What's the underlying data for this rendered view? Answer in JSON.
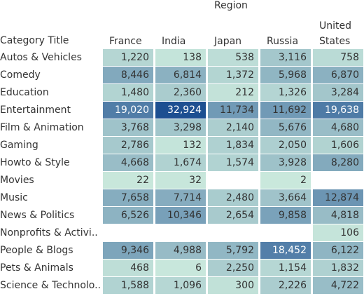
{
  "chart_data": {
    "type": "heatmap",
    "header_title": "Region",
    "row_header": "Category Title",
    "columns": [
      "France",
      "India",
      "Japan",
      "Russia",
      "United States"
    ],
    "rows": [
      {
        "label": "Autos & Vehicles",
        "values": [
          1220,
          138,
          538,
          3116,
          758
        ]
      },
      {
        "label": "Comedy",
        "values": [
          8446,
          6814,
          1372,
          5968,
          6870
        ]
      },
      {
        "label": "Education",
        "values": [
          1480,
          2360,
          212,
          1326,
          3284
        ]
      },
      {
        "label": "Entertainment",
        "values": [
          19020,
          32924,
          11734,
          11692,
          19638
        ]
      },
      {
        "label": "Film & Animation",
        "values": [
          3768,
          3298,
          2140,
          5676,
          4680
        ]
      },
      {
        "label": "Gaming",
        "values": [
          2786,
          132,
          1834,
          2050,
          1606
        ]
      },
      {
        "label": "Howto & Style",
        "values": [
          4668,
          1674,
          1574,
          3928,
          8280
        ]
      },
      {
        "label": "Movies",
        "values": [
          22,
          32,
          null,
          2,
          null
        ]
      },
      {
        "label": "Music",
        "values": [
          7658,
          7714,
          2480,
          3664,
          12874
        ]
      },
      {
        "label": "News & Politics",
        "values": [
          6526,
          10346,
          2654,
          9858,
          4818
        ]
      },
      {
        "label": "Nonprofits & Activi..",
        "values": [
          null,
          null,
          null,
          null,
          106
        ]
      },
      {
        "label": "People & Blogs",
        "values": [
          9346,
          4988,
          5792,
          18452,
          6122
        ]
      },
      {
        "label": "Pets & Animals",
        "values": [
          468,
          6,
          2250,
          1154,
          1832
        ]
      },
      {
        "label": "Science & Technolo..",
        "values": [
          1588,
          1096,
          300,
          2226,
          4722
        ]
      }
    ],
    "color_min": "#c9e8dc",
    "color_max": "#1d4f91"
  }
}
